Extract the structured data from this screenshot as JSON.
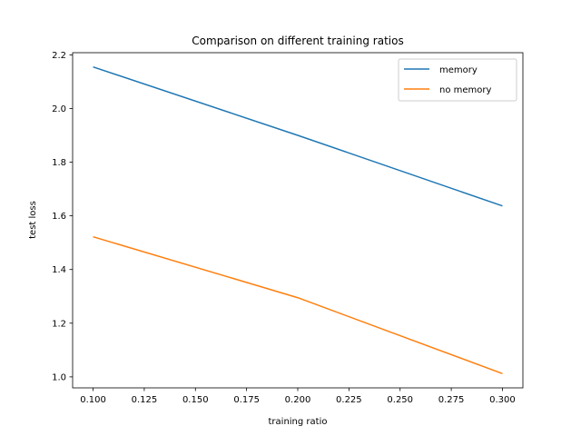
{
  "chart_data": {
    "type": "line",
    "title": "Comparison on different training ratios",
    "xlabel": "training ratio",
    "ylabel": "test loss",
    "x": [
      0.1,
      0.2,
      0.3
    ],
    "series": [
      {
        "name": "memory",
        "color": "#1f77b4",
        "values": [
          2.155,
          1.9,
          1.637
        ]
      },
      {
        "name": "no memory",
        "color": "#ff7f0e",
        "values": [
          1.522,
          1.295,
          1.012
        ]
      }
    ],
    "xlim": [
      0.09,
      0.31
    ],
    "ylim": [
      0.959,
      2.208
    ],
    "xticks": [
      0.1,
      0.125,
      0.15,
      0.175,
      0.2,
      0.225,
      0.25,
      0.275,
      0.3
    ],
    "xtick_labels": [
      "0.100",
      "0.125",
      "0.150",
      "0.175",
      "0.200",
      "0.225",
      "0.250",
      "0.275",
      "0.300"
    ],
    "yticks": [
      1.0,
      1.2,
      1.4,
      1.6,
      1.8,
      2.0,
      2.2
    ],
    "ytick_labels": [
      "1.0",
      "1.2",
      "1.4",
      "1.6",
      "1.8",
      "2.0",
      "2.2"
    ],
    "grid": false,
    "legend_position": "top-right"
  }
}
